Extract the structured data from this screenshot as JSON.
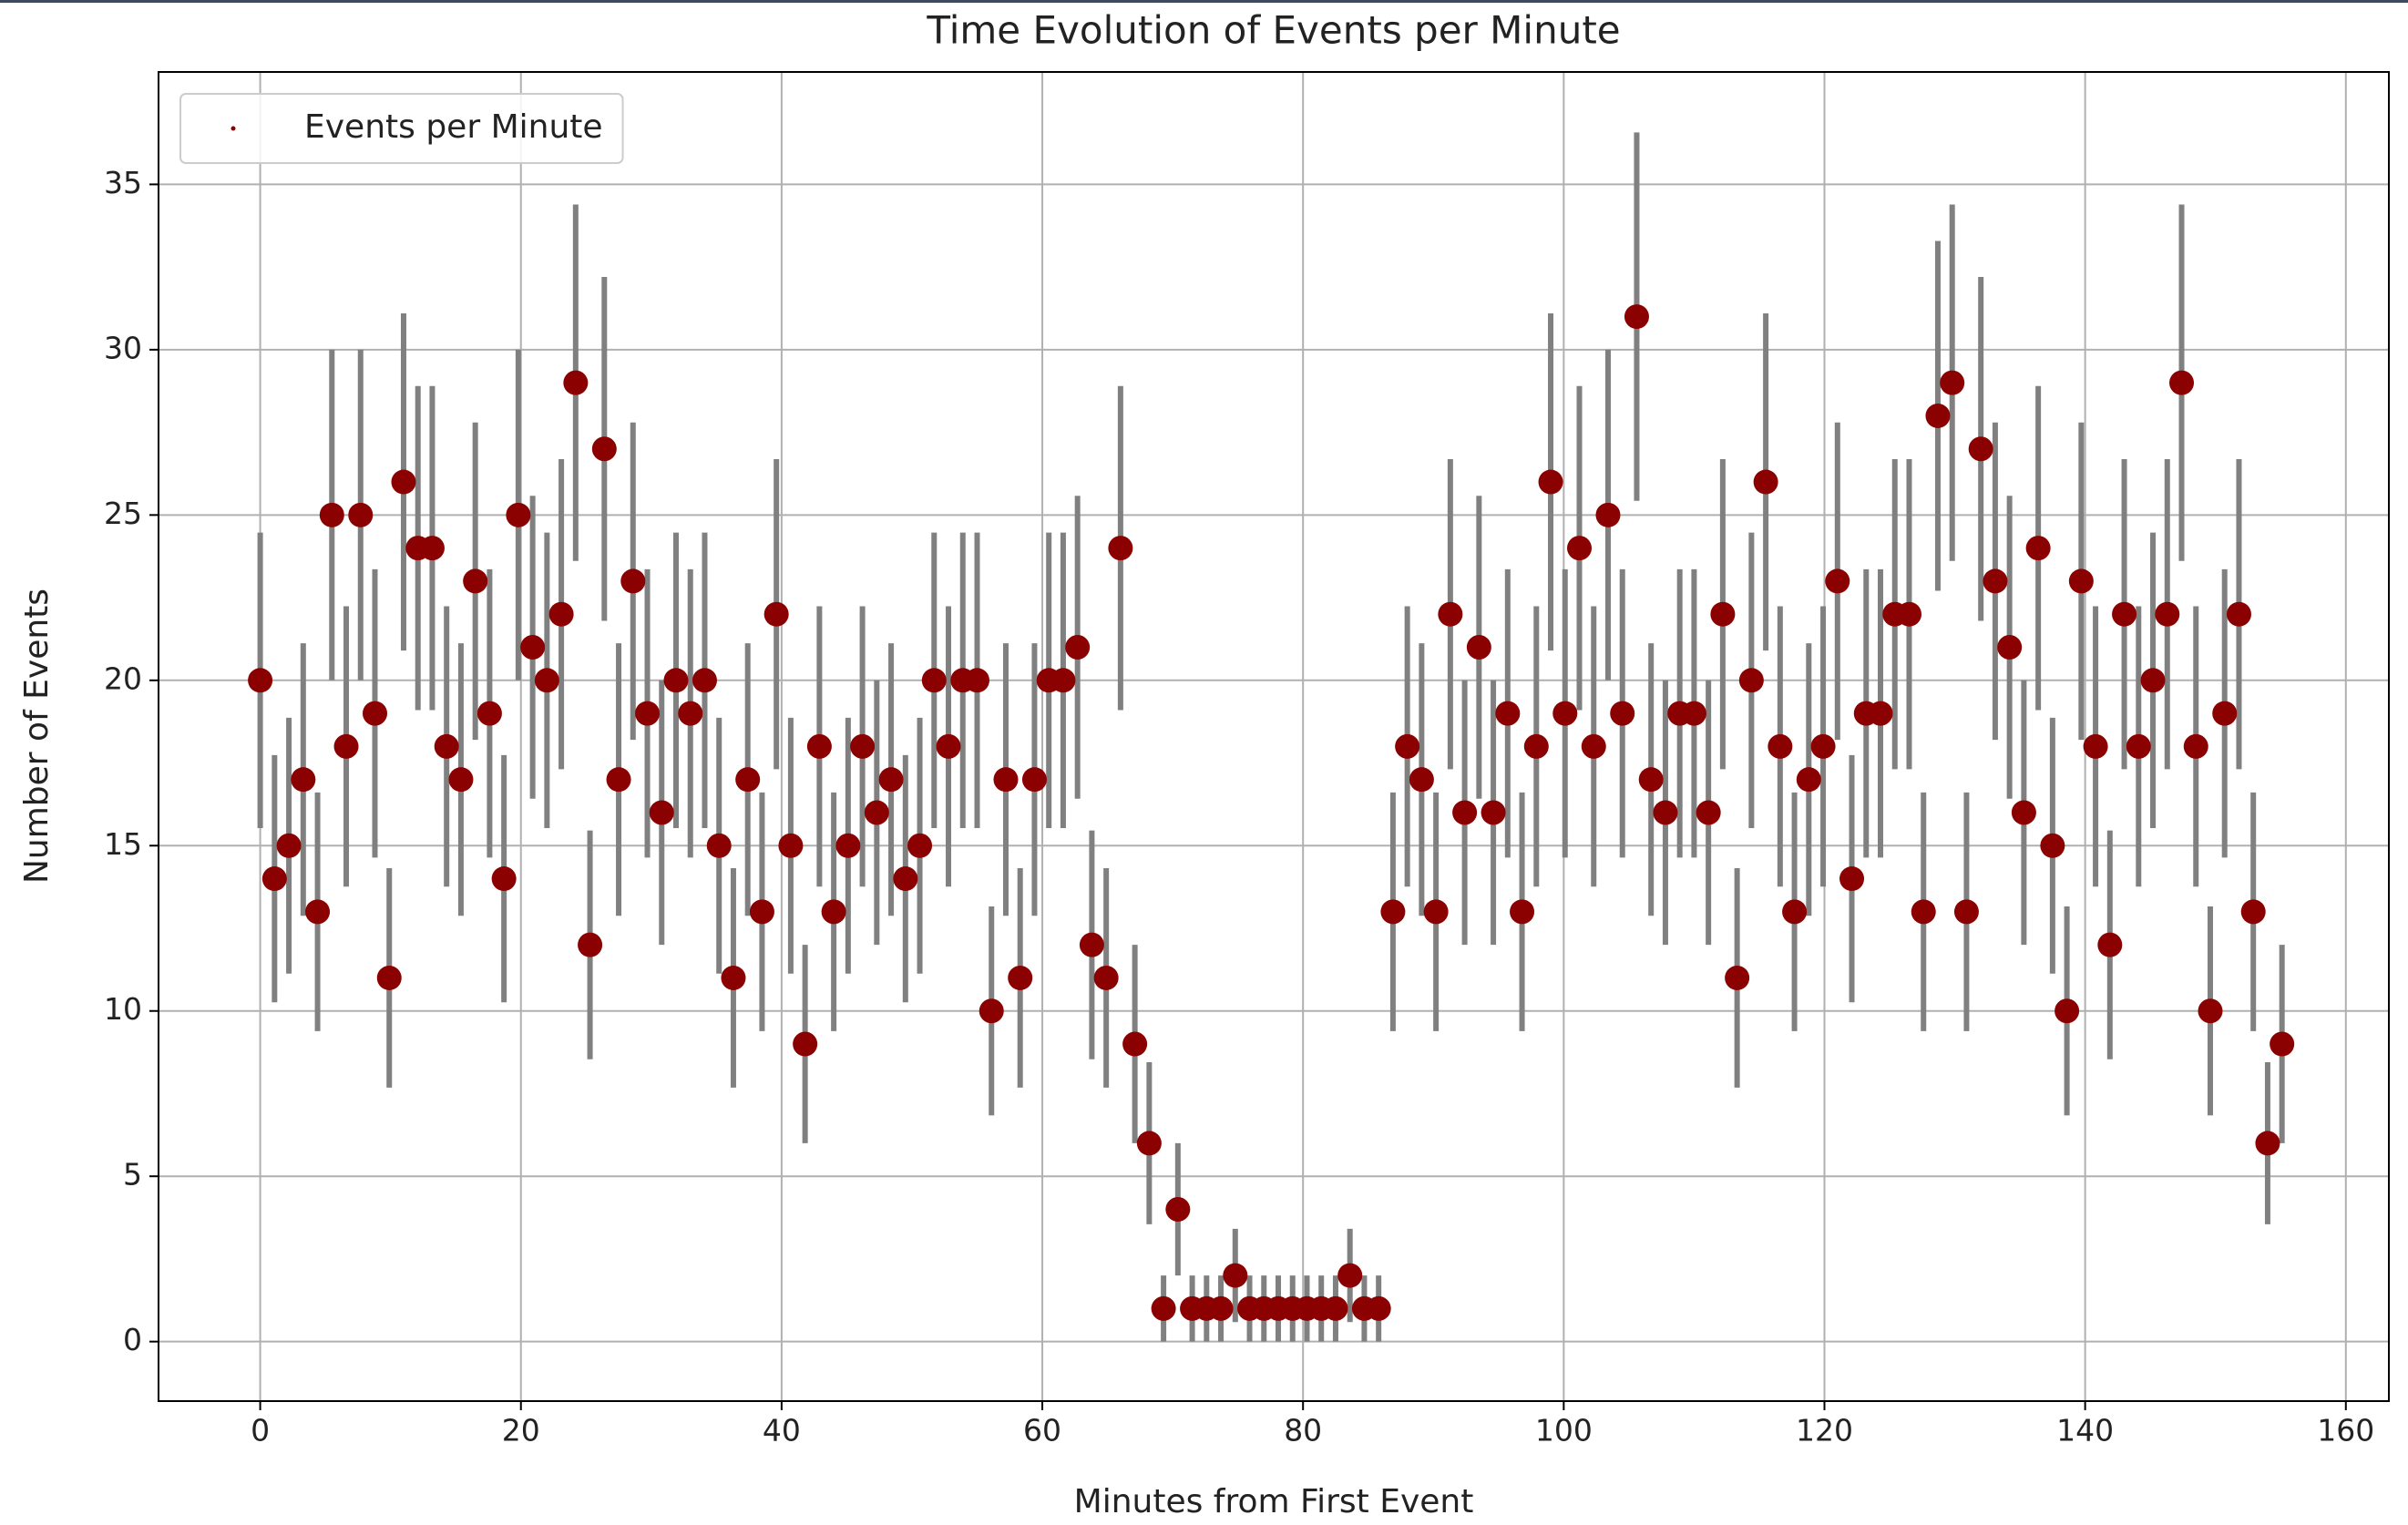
{
  "chart_data": {
    "type": "errorbar-scatter",
    "title": "Time Evolution of Events per Minute",
    "x_label": "Minutes from First Event",
    "y_label": "Number of Events",
    "xlim": [
      -7.8,
      163.3
    ],
    "ylim": [
      -1.8,
      38.4
    ],
    "xticks": [
      0,
      20,
      40,
      60,
      80,
      100,
      120,
      140,
      160
    ],
    "yticks": [
      0,
      5,
      10,
      15,
      20,
      25,
      30,
      35
    ],
    "grid": true,
    "legend": "upper left",
    "error_color": "#808080",
    "x": [
      0,
      1.1,
      2.2,
      3.3,
      4.4,
      5.5,
      6.6,
      7.7,
      8.8,
      9.9,
      11,
      12.1,
      13.2,
      14.3,
      15.4,
      16.5,
      17.6,
      18.7,
      19.8,
      20.9,
      22,
      23.1,
      24.2,
      25.3,
      26.4,
      27.5,
      28.6,
      29.7,
      30.8,
      31.9,
      33,
      34.1,
      35.2,
      36.3,
      37.4,
      38.5,
      39.6,
      40.7,
      41.8,
      42.9,
      44,
      45.1,
      46.2,
      47.3,
      48.4,
      49.5,
      50.6,
      51.7,
      52.8,
      53.9,
      55,
      56.1,
      57.2,
      58.3,
      59.4,
      60.5,
      61.6,
      62.7,
      63.8,
      64.9,
      66,
      67.1,
      68.2,
      69.3,
      70.4,
      71.5,
      72.6,
      73.7,
      74.8,
      75.9,
      77,
      78.1,
      79.2,
      80.3,
      81.4,
      82.5,
      83.6,
      84.7,
      85.8,
      86.9,
      88,
      89.1,
      90.2,
      91.3,
      92.4,
      93.5,
      94.6,
      95.7,
      96.8,
      97.9,
      99,
      100.1,
      101.2,
      102.3,
      103.4,
      104.5,
      105.6,
      106.7,
      107.8,
      108.9,
      110,
      111.1,
      112.2,
      113.3,
      114.4,
      115.5,
      116.6,
      117.7,
      118.8,
      119.9,
      121,
      122.1,
      123.2,
      124.3,
      125.4,
      126.5,
      127.6,
      128.7,
      129.8,
      130.9,
      132,
      133.1,
      134.2,
      135.3,
      136.4,
      137.5,
      138.6,
      139.7,
      140.8,
      141.9,
      143,
      144.1,
      145.2,
      146.3,
      147.4,
      148.5,
      149.6,
      150.7,
      151.8,
      152.9,
      154,
      155.1
    ],
    "series": [
      {
        "name": "Events per Minute",
        "color": "#8b0000",
        "values": [
          20,
          14,
          15,
          17,
          13,
          25,
          18,
          25,
          19,
          11,
          26,
          24,
          24,
          18,
          17,
          23,
          19,
          14,
          25,
          21,
          20,
          22,
          29,
          12,
          27,
          17,
          23,
          19,
          16,
          20,
          19,
          20,
          15,
          11,
          17,
          13,
          22,
          15,
          9,
          18,
          13,
          15,
          18,
          16,
          17,
          14,
          15,
          20,
          18,
          20,
          20,
          10,
          17,
          11,
          17,
          20,
          20,
          21,
          12,
          11,
          24,
          9,
          6,
          1,
          4,
          1,
          1,
          1,
          2,
          1,
          1,
          1,
          1,
          1,
          1,
          1,
          2,
          1,
          1,
          13,
          18,
          17,
          13,
          22,
          16,
          21,
          16,
          19,
          13,
          18,
          26,
          19,
          24,
          18,
          25,
          19,
          31,
          17,
          16,
          19,
          19,
          16,
          22,
          11,
          20,
          26,
          18,
          13,
          17,
          18,
          23,
          14,
          19,
          19,
          22,
          22,
          13,
          28,
          29,
          13,
          27,
          23,
          21,
          16,
          24,
          15,
          10,
          23,
          18,
          12,
          22,
          18,
          20,
          22,
          29,
          18,
          10,
          19,
          22,
          13,
          6,
          9
        ],
        "errors": [
          4.47,
          3.74,
          3.87,
          4.12,
          3.61,
          5,
          4.24,
          5,
          4.36,
          3.32,
          5.1,
          4.9,
          4.9,
          4.24,
          4.12,
          4.8,
          4.36,
          3.74,
          5,
          4.58,
          4.47,
          4.69,
          5.39,
          3.46,
          5.2,
          4.12,
          4.8,
          4.36,
          4,
          4.47,
          4.36,
          4.47,
          3.87,
          3.32,
          4.12,
          3.61,
          4.69,
          3.87,
          3,
          4.24,
          3.61,
          3.87,
          4.24,
          4,
          4.12,
          3.74,
          3.87,
          4.47,
          4.24,
          4.47,
          4.47,
          3.16,
          4.12,
          3.32,
          4.12,
          4.47,
          4.47,
          4.58,
          3.46,
          3.32,
          4.9,
          3,
          2.45,
          1,
          2,
          1,
          1,
          1,
          1.41,
          1,
          1,
          1,
          1,
          1,
          1,
          1,
          1.41,
          1,
          1,
          3.61,
          4.24,
          4.12,
          3.61,
          4.69,
          4,
          4.58,
          4,
          4.36,
          3.61,
          4.24,
          5.1,
          4.36,
          4.9,
          4.24,
          5,
          4.36,
          5.57,
          4.12,
          4,
          4.36,
          4.36,
          4,
          4.69,
          3.32,
          4.47,
          5.1,
          4.24,
          3.61,
          4.12,
          4.24,
          4.8,
          3.74,
          4.36,
          4.36,
          4.69,
          4.69,
          3.61,
          5.29,
          5.39,
          3.61,
          5.2,
          4.8,
          4.58,
          4,
          4.9,
          3.87,
          3.16,
          4.8,
          4.24,
          3.46,
          4.69,
          4.24,
          4.47,
          4.69,
          5.39,
          4.24,
          3.16,
          4.36,
          4.69,
          3.61,
          2.45,
          3
        ]
      }
    ]
  }
}
